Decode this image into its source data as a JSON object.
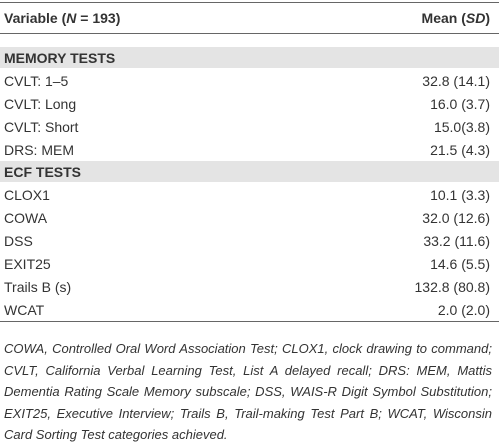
{
  "header": {
    "variable": [
      "Variable (",
      "N",
      " = 193)"
    ],
    "mean": [
      "Mean (",
      "SD",
      ")"
    ]
  },
  "sections": [
    {
      "title": "MEMORY TESTS",
      "rows": [
        [
          "CVLT: 1–5",
          "32.8 (14.1)"
        ],
        [
          "CVLT: Long",
          "16.0 (3.7)"
        ],
        [
          "CVLT: Short",
          "15.0(3.8)"
        ],
        [
          "DRS: MEM",
          "21.5 (4.3)"
        ]
      ]
    },
    {
      "title": "ECF TESTS",
      "rows": [
        [
          "CLOX1",
          "10.1 (3.3)"
        ],
        [
          "COWA",
          "32.0 (12.6)"
        ],
        [
          "DSS",
          "33.2 (11.6)"
        ],
        [
          "EXIT25",
          "14.6 (5.5)"
        ],
        [
          "Trails B (s)",
          "132.8 (80.8)"
        ],
        [
          "WCAT",
          "2.0 (2.0)"
        ]
      ]
    }
  ],
  "footnote": "COWA, Controlled Oral Word Association Test; CLOX1, clock drawing to command; CVLT, California Verbal Learning Test, List A delayed recall; DRS: MEM, Mattis Dementia Rating Scale Memory subscale; DSS, WAIS-R Digit Symbol Substitution; EXIT25, Executive Interview; Trails B, Trail-making Test Part B; WCAT, Wisconsin Card Sorting Test categories achieved."
}
